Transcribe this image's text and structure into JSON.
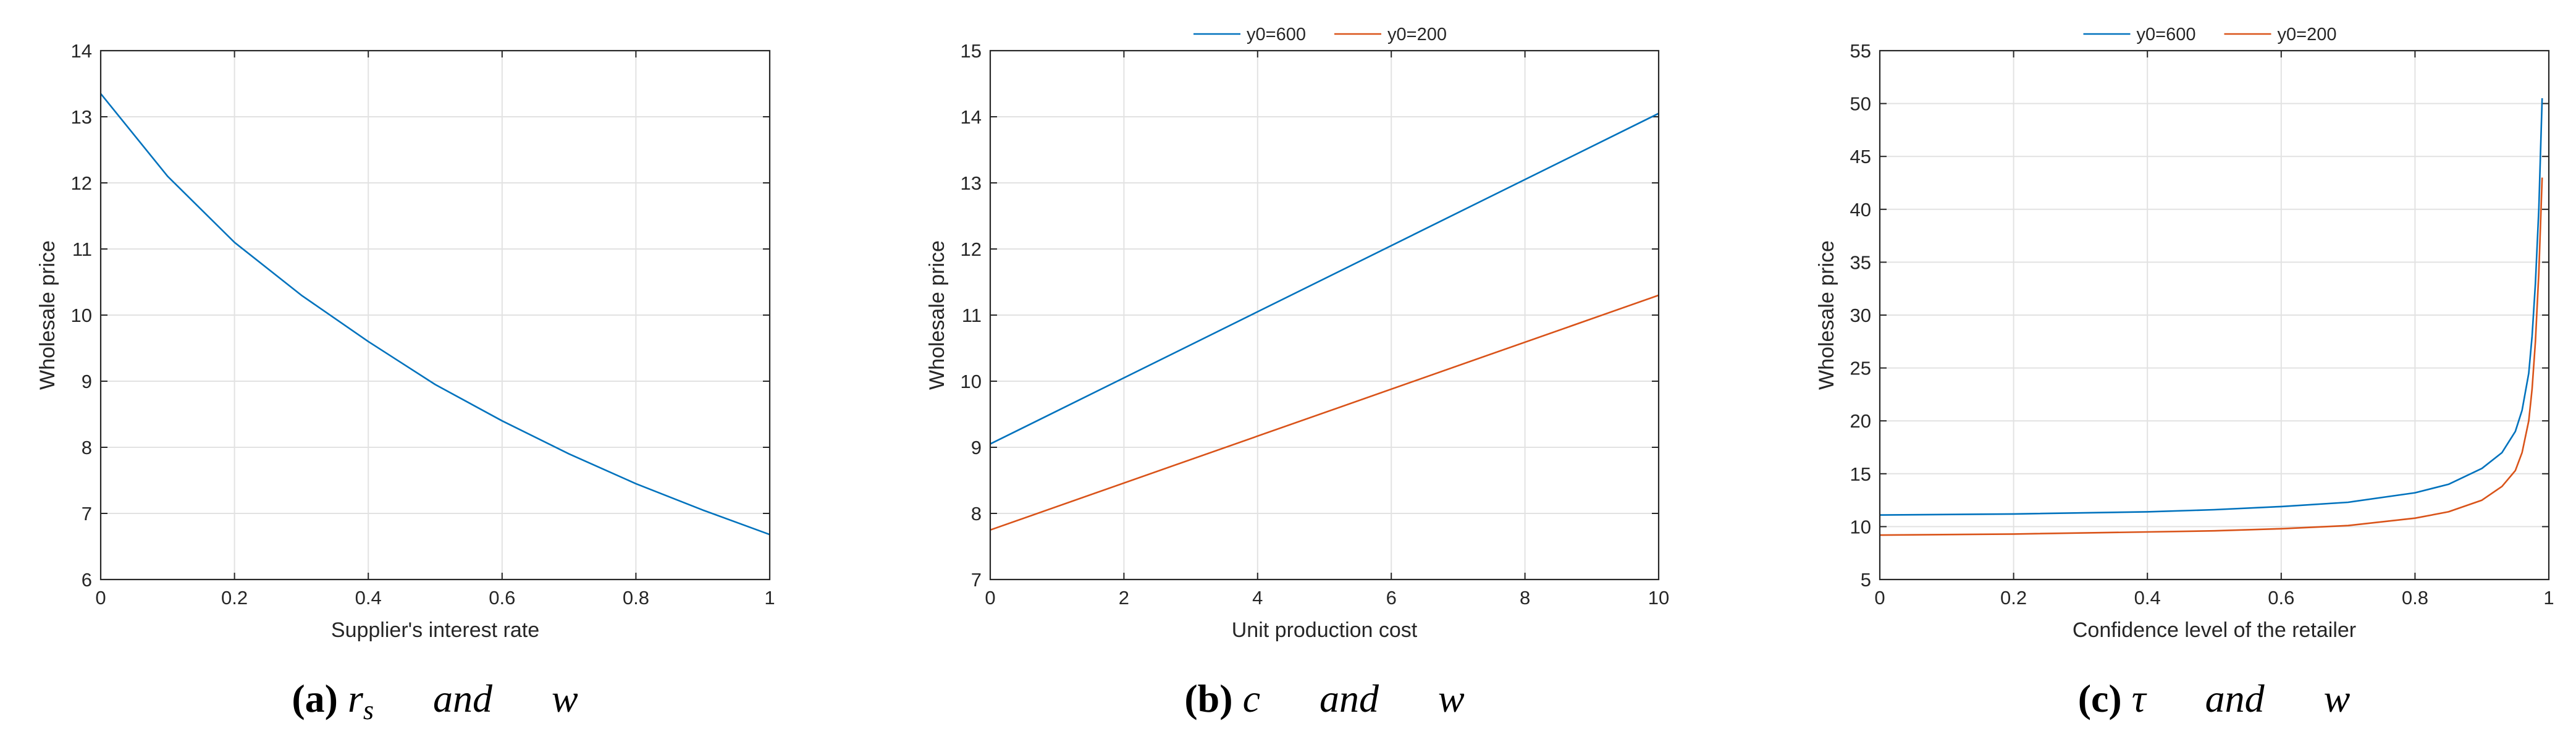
{
  "colors": {
    "series_blue": "#0072BD",
    "series_orange": "#D95319"
  },
  "chart_data": [
    {
      "type": "line",
      "panel": "a",
      "xlabel": "Supplier's interest rate",
      "ylabel": "Wholesale price",
      "xlim": [
        0,
        1
      ],
      "ylim": [
        6,
        14
      ],
      "xticks": [
        0,
        0.2,
        0.4,
        0.6,
        0.8,
        1
      ],
      "xtick_labels": [
        "0",
        "0.2",
        "0.4",
        "0.6",
        "0.8",
        "1"
      ],
      "yticks": [
        6,
        7,
        8,
        9,
        10,
        11,
        12,
        13,
        14
      ],
      "ytick_labels": [
        "6",
        "7",
        "8",
        "9",
        "10",
        "11",
        "12",
        "13",
        "14"
      ],
      "grid": true,
      "legend": null,
      "caption": {
        "letter": "(a)",
        "math": "r",
        "sub": "s",
        "rest": "and",
        "var": "w"
      },
      "series": [
        {
          "color": "#0072BD",
          "x": [
            0,
            0.1,
            0.2,
            0.3,
            0.4,
            0.5,
            0.6,
            0.7,
            0.8,
            0.9,
            1.0
          ],
          "y": [
            13.35,
            12.1,
            11.1,
            10.3,
            9.6,
            8.95,
            8.4,
            7.9,
            7.45,
            7.05,
            6.68
          ]
        }
      ]
    },
    {
      "type": "line",
      "panel": "b",
      "xlabel": "Unit production cost",
      "ylabel": "Wholesale price",
      "xlim": [
        0,
        10
      ],
      "ylim": [
        7,
        15
      ],
      "xticks": [
        0,
        2,
        4,
        6,
        8,
        10
      ],
      "xtick_labels": [
        "0",
        "2",
        "4",
        "6",
        "8",
        "10"
      ],
      "yticks": [
        7,
        8,
        9,
        10,
        11,
        12,
        13,
        14,
        15
      ],
      "ytick_labels": [
        "7",
        "8",
        "9",
        "10",
        "11",
        "12",
        "13",
        "14",
        "15"
      ],
      "grid": true,
      "legend": "top-center",
      "caption": {
        "letter": "(b)",
        "math": "c",
        "sub": "",
        "rest": "and",
        "var": "w"
      },
      "series": [
        {
          "name": "y0=600",
          "color": "#0072BD",
          "x": [
            0,
            10
          ],
          "y": [
            9.05,
            14.05
          ]
        },
        {
          "name": "y0=200",
          "color": "#D95319",
          "x": [
            0,
            10
          ],
          "y": [
            7.75,
            11.3
          ]
        }
      ]
    },
    {
      "type": "line",
      "panel": "c",
      "xlabel": "Confidence level of the retailer",
      "ylabel": "Wholesale price",
      "xlim": [
        0,
        1
      ],
      "ylim": [
        5,
        55
      ],
      "xticks": [
        0,
        0.2,
        0.4,
        0.6,
        0.8,
        1
      ],
      "xtick_labels": [
        "0",
        "0.2",
        "0.4",
        "0.6",
        "0.8",
        "1"
      ],
      "yticks": [
        5,
        10,
        15,
        20,
        25,
        30,
        35,
        40,
        45,
        50,
        55
      ],
      "ytick_labels": [
        "5",
        "10",
        "15",
        "20",
        "25",
        "30",
        "35",
        "40",
        "45",
        "50",
        "55"
      ],
      "grid": true,
      "legend": "top-center",
      "caption": {
        "letter": "(c)",
        "math": "τ",
        "sub": "",
        "rest": "and",
        "var": "w"
      },
      "series": [
        {
          "name": "y0=600",
          "color": "#0072BD",
          "x": [
            0,
            0.2,
            0.4,
            0.5,
            0.6,
            0.7,
            0.8,
            0.85,
            0.9,
            0.93,
            0.95,
            0.96,
            0.97,
            0.975,
            0.98,
            0.985,
            0.99
          ],
          "y": [
            11.1,
            11.2,
            11.4,
            11.6,
            11.9,
            12.3,
            13.2,
            14.0,
            15.5,
            17.0,
            19.0,
            21.0,
            24.5,
            28.0,
            33.0,
            40.0,
            50.5
          ]
        },
        {
          "name": "y0=200",
          "color": "#D95319",
          "x": [
            0,
            0.2,
            0.4,
            0.5,
            0.6,
            0.7,
            0.8,
            0.85,
            0.9,
            0.93,
            0.95,
            0.96,
            0.97,
            0.975,
            0.98,
            0.985,
            0.99
          ],
          "y": [
            9.2,
            9.3,
            9.5,
            9.6,
            9.8,
            10.1,
            10.8,
            11.4,
            12.5,
            13.8,
            15.3,
            17.0,
            20.0,
            23.0,
            27.5,
            34.0,
            43.0
          ]
        }
      ]
    }
  ]
}
